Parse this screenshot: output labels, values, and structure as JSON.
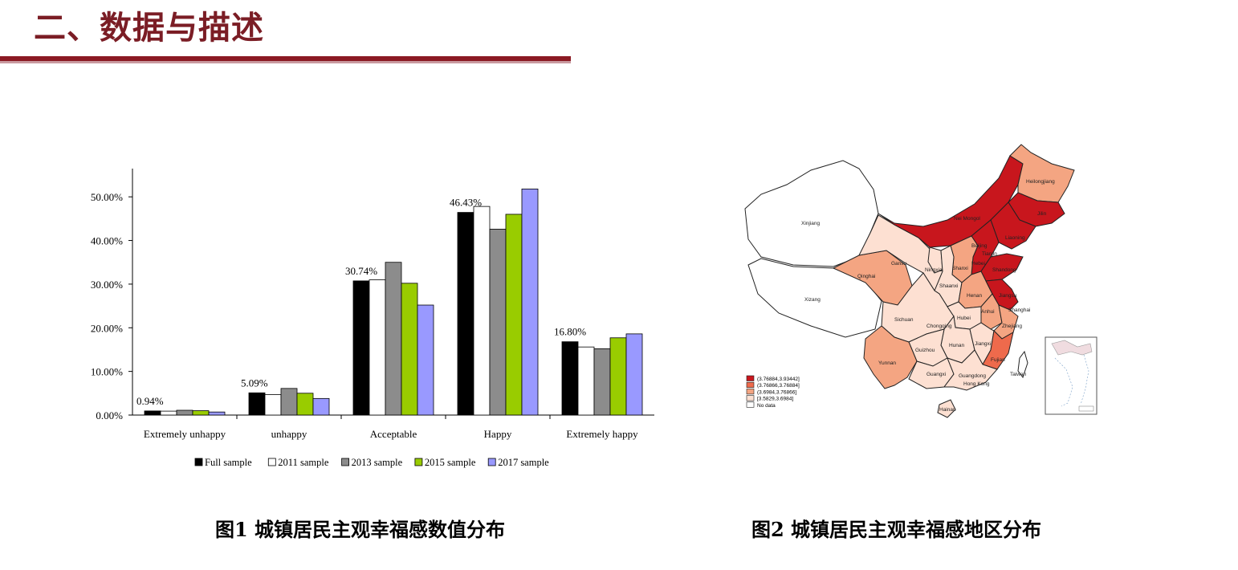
{
  "slide": {
    "title": "二、数据与描述"
  },
  "colors": {
    "title": "#7b1d25",
    "full_sample": "#000000",
    "s2011": "#ffffff",
    "s2013": "#8c8c8c",
    "s2015": "#99cc00",
    "s2017": "#9999ff",
    "map_c1": "#c8161d",
    "map_c2": "#ee6a4c",
    "map_c3": "#f4a582",
    "map_c4": "#fde0d2",
    "map_nodata": "#ffffff"
  },
  "chart_data": {
    "type": "bar",
    "title": "",
    "xlabel": "",
    "ylabel": "",
    "ylim": [
      0,
      0.55
    ],
    "yticks": [
      "0.00%",
      "10.00%",
      "20.00%",
      "30.00%",
      "40.00%",
      "50.00%"
    ],
    "categories": [
      "Extremely unhappy",
      "unhappy",
      "Acceptable",
      "Happy",
      "Extremely happy"
    ],
    "series": [
      {
        "name": "Full sample",
        "color": "#000000",
        "values": [
          0.0094,
          0.0509,
          0.3074,
          0.4643,
          0.168
        ]
      },
      {
        "name": "2011 sample",
        "color": "#ffffff",
        "values": [
          0.009,
          0.047,
          0.31,
          0.478,
          0.156
        ]
      },
      {
        "name": "2013 sample",
        "color": "#8c8c8c",
        "values": [
          0.011,
          0.061,
          0.35,
          0.426,
          0.152
        ]
      },
      {
        "name": "2015 sample",
        "color": "#99cc00",
        "values": [
          0.01,
          0.05,
          0.302,
          0.46,
          0.177
        ]
      },
      {
        "name": "2017 sample",
        "color": "#9999ff",
        "values": [
          0.007,
          0.038,
          0.252,
          0.518,
          0.186
        ]
      }
    ],
    "data_labels": [
      "0.94%",
      "5.09%",
      "30.74%",
      "46.43%",
      "16.80%"
    ],
    "legend_position": "bottom",
    "grid": false
  },
  "map": {
    "legend": [
      {
        "label": "(3.76884,3.93442]",
        "color": "#c8161d"
      },
      {
        "label": "(3.76866,3.76884]",
        "color": "#ee6a4c"
      },
      {
        "label": "(3.6984,3.76866]",
        "color": "#f4a582"
      },
      {
        "label": "[3.5829,3.6984]",
        "color": "#fde0d2"
      },
      {
        "label": "No data",
        "color": "#ffffff"
      }
    ],
    "regions": [
      {
        "name": "Xinjiang",
        "color": "#ffffff"
      },
      {
        "name": "Xizang",
        "color": "#ffffff"
      },
      {
        "name": "Qinghai",
        "color": "#f4a582"
      },
      {
        "name": "Gansu",
        "color": "#fde0d2"
      },
      {
        "name": "Nei Mongol",
        "color": "#c8161d"
      },
      {
        "name": "Heilongjiang",
        "color": "#f4a582"
      },
      {
        "name": "Jilin",
        "color": "#c8161d"
      },
      {
        "name": "Liaoning",
        "color": "#c8161d"
      },
      {
        "name": "Beijing",
        "color": "#c8161d"
      },
      {
        "name": "Tianjin",
        "color": "#c8161d"
      },
      {
        "name": "Hebei",
        "color": "#c8161d"
      },
      {
        "name": "Shandong",
        "color": "#c8161d"
      },
      {
        "name": "Shanxi",
        "color": "#f4a582"
      },
      {
        "name": "Ningxia",
        "color": "#fde0d2"
      },
      {
        "name": "Shaanxi",
        "color": "#fde0d2"
      },
      {
        "name": "Henan",
        "color": "#f4a582"
      },
      {
        "name": "Jiangsu",
        "color": "#c8161d"
      },
      {
        "name": "Shanghai",
        "color": "#c8161d"
      },
      {
        "name": "Anhui",
        "color": "#f4a582"
      },
      {
        "name": "Zhejiang",
        "color": "#f4a582"
      },
      {
        "name": "Sichuan",
        "color": "#fde0d2"
      },
      {
        "name": "Chongqing",
        "color": "#fde0d2"
      },
      {
        "name": "Hubei",
        "color": "#fde0d2"
      },
      {
        "name": "Hunan",
        "color": "#fde0d2"
      },
      {
        "name": "Jiangxi",
        "color": "#fde0d2"
      },
      {
        "name": "Fujian",
        "color": "#ee6a4c"
      },
      {
        "name": "Taiwan",
        "color": "#ffffff"
      },
      {
        "name": "Guizhou",
        "color": "#fde0d2"
      },
      {
        "name": "Yunnan",
        "color": "#f4a582"
      },
      {
        "name": "Guangxi",
        "color": "#fde0d2"
      },
      {
        "name": "Guangdong",
        "color": "#fde0d2"
      },
      {
        "name": "Hong Kong",
        "color": "#fde0d2"
      },
      {
        "name": "Hainan",
        "color": "#fde0d2"
      }
    ]
  },
  "captions": {
    "fig1": "图1  城镇居民主观幸福感数值分布",
    "fig2": "图2  城镇居民主观幸福感地区分布"
  }
}
